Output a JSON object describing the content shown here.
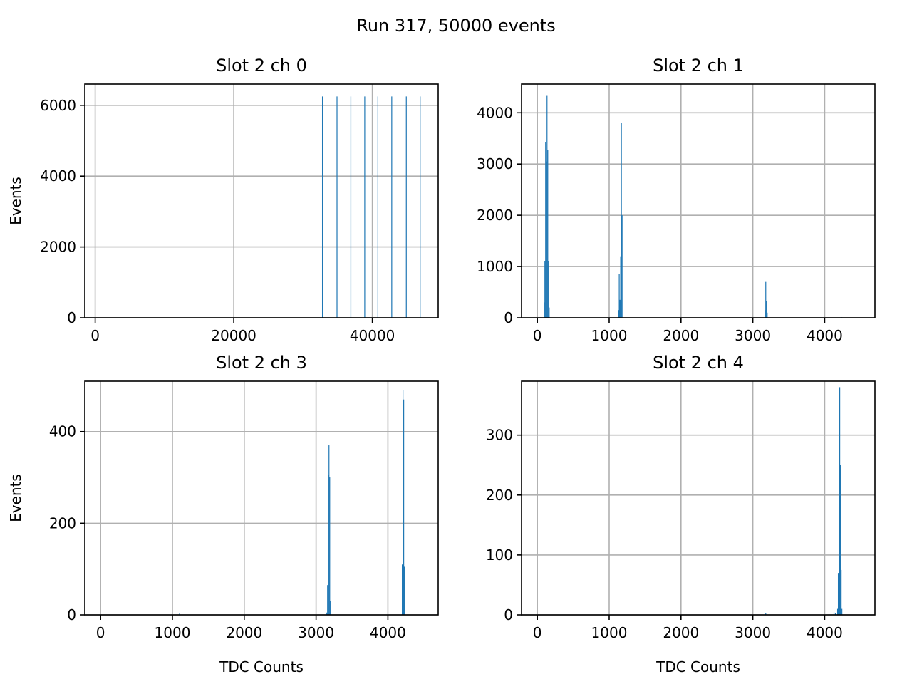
{
  "figure": {
    "suptitle": "Run 317, 50000 events",
    "bar_color": "#1f77b4",
    "grid": true
  },
  "chart_data": [
    {
      "type": "bar",
      "title": "Slot 2 ch 0",
      "xlabel": "",
      "ylabel": "Events",
      "xlim": [
        -1500,
        49500
      ],
      "ylim": [
        0,
        6600
      ],
      "xticks": [
        0,
        20000,
        40000
      ],
      "xtick_labels": [
        "0",
        "20000",
        "40000"
      ],
      "yticks": [
        0,
        2000,
        4000,
        6000
      ],
      "ytick_labels": [
        "0",
        "2000",
        "4000",
        "6000"
      ],
      "bin_width": 60,
      "bins": [
        [
          32800,
          6250
        ],
        [
          34900,
          6250
        ],
        [
          36900,
          6250
        ],
        [
          38900,
          6250
        ],
        [
          40800,
          6250
        ],
        [
          42800,
          6250
        ],
        [
          44900,
          6250
        ],
        [
          46900,
          6250
        ]
      ]
    },
    {
      "type": "bar",
      "title": "Slot 2 ch 1",
      "xlabel": "",
      "ylabel": "",
      "xlim": [
        -220,
        4700
      ],
      "ylim": [
        0,
        4560
      ],
      "xticks": [
        0,
        1000,
        2000,
        3000,
        4000
      ],
      "xtick_labels": [
        "0",
        "1000",
        "2000",
        "3000",
        "4000"
      ],
      "yticks": [
        0,
        1000,
        2000,
        3000,
        4000
      ],
      "ytick_labels": [
        "0",
        "1000",
        "2000",
        "3000",
        "4000"
      ],
      "bin_width": 10,
      "bins": [
        [
          95,
          300
        ],
        [
          105,
          1100
        ],
        [
          115,
          3430
        ],
        [
          125,
          3050
        ],
        [
          135,
          4330
        ],
        [
          145,
          3280
        ],
        [
          155,
          1100
        ],
        [
          165,
          200
        ],
        [
          1130,
          150
        ],
        [
          1140,
          850
        ],
        [
          1150,
          350
        ],
        [
          1160,
          1200
        ],
        [
          1170,
          3800
        ],
        [
          1180,
          2000
        ],
        [
          3170,
          150
        ],
        [
          3180,
          700
        ],
        [
          3190,
          330
        ],
        [
          3200,
          100
        ],
        [
          4240,
          10
        ]
      ]
    },
    {
      "type": "bar",
      "title": "Slot 2 ch 3",
      "xlabel": "TDC Counts",
      "ylabel": "Events",
      "xlim": [
        -220,
        4700
      ],
      "ylim": [
        0,
        510
      ],
      "xticks": [
        0,
        1000,
        2000,
        3000,
        4000
      ],
      "xtick_labels": [
        "0",
        "1000",
        "2000",
        "3000",
        "4000"
      ],
      "yticks": [
        0,
        200,
        400
      ],
      "ytick_labels": [
        "0",
        "200",
        "400"
      ],
      "bin_width": 10,
      "bins": [
        [
          1100,
          3
        ],
        [
          3150,
          5
        ],
        [
          3160,
          65
        ],
        [
          3170,
          305
        ],
        [
          3180,
          370
        ],
        [
          3190,
          300
        ],
        [
          3200,
          30
        ],
        [
          4200,
          110
        ],
        [
          4210,
          490
        ],
        [
          4220,
          470
        ],
        [
          4230,
          105
        ]
      ]
    },
    {
      "type": "bar",
      "title": "Slot 2 ch 4",
      "xlabel": "TDC Counts",
      "ylabel": "",
      "xlim": [
        -220,
        4700
      ],
      "ylim": [
        0,
        390
      ],
      "xticks": [
        0,
        1000,
        2000,
        3000,
        4000
      ],
      "xtick_labels": [
        "0",
        "1000",
        "2000",
        "3000",
        "4000"
      ],
      "yticks": [
        0,
        100,
        200,
        300
      ],
      "ytick_labels": [
        "0",
        "100",
        "200",
        "300"
      ],
      "bin_width": 10,
      "bins": [
        [
          3180,
          3
        ],
        [
          4130,
          4
        ],
        [
          4150,
          3
        ],
        [
          4180,
          10
        ],
        [
          4190,
          70
        ],
        [
          4200,
          180
        ],
        [
          4210,
          380
        ],
        [
          4220,
          250
        ],
        [
          4230,
          75
        ],
        [
          4240,
          10
        ]
      ]
    }
  ]
}
